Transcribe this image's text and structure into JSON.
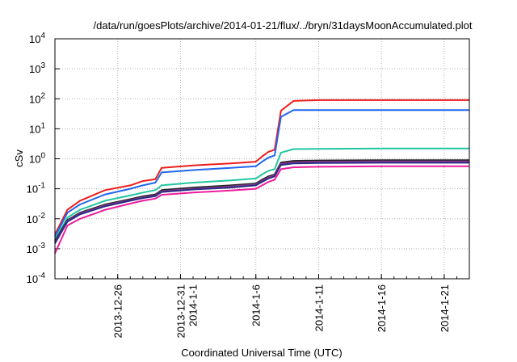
{
  "chart_data": {
    "type": "line",
    "title": "/data/run/goesPlots/archive/2014-01-21/flux/../bryn/31daysMoonAccumulated.plot",
    "xlabel": "Coordinated Universal Time (UTC)",
    "ylabel": "cSv",
    "yscale": "log",
    "ylim": [
      0.0001,
      10000
    ],
    "xlim": [
      "2013-12-21",
      "2014-01-23"
    ],
    "grid": true,
    "y_ticks": [
      {
        "value": 0.0001,
        "mantissa": "10",
        "exp": "-4"
      },
      {
        "value": 0.001,
        "mantissa": "10",
        "exp": "-3"
      },
      {
        "value": 0.01,
        "mantissa": "10",
        "exp": "-2"
      },
      {
        "value": 0.1,
        "mantissa": "10",
        "exp": "-1"
      },
      {
        "value": 1,
        "mantissa": "10",
        "exp": "0"
      },
      {
        "value": 10,
        "mantissa": "10",
        "exp": "1"
      },
      {
        "value": 100,
        "mantissa": "10",
        "exp": "2"
      },
      {
        "value": 1000,
        "mantissa": "10",
        "exp": "3"
      },
      {
        "value": 10000,
        "mantissa": "10",
        "exp": "4"
      }
    ],
    "x_ticks": [
      {
        "date": "2013-12-26",
        "lines": [
          "2013-12-26"
        ]
      },
      {
        "date": "2013-12-31",
        "lines": [
          "2013-12-31",
          "2014-1-1"
        ]
      },
      {
        "date": "2014-01-06",
        "lines": [
          "2014-1-6"
        ]
      },
      {
        "date": "2014-01-11",
        "lines": [
          "2014-1-11"
        ]
      },
      {
        "date": "2014-01-16",
        "lines": [
          "2014-1-16"
        ]
      },
      {
        "date": "2014-01-21",
        "lines": [
          "2014-1-21"
        ]
      }
    ],
    "x": [
      "2013-12-21",
      "2013-12-22",
      "2013-12-23",
      "2013-12-25",
      "2013-12-27",
      "2013-12-28",
      "2013-12-29",
      "2013-12-29T12",
      "2014-01-01",
      "2014-01-04",
      "2014-01-06",
      "2014-01-06T12",
      "2014-01-07",
      "2014-01-07T12",
      "2014-01-08",
      "2014-01-09",
      "2014-01-11",
      "2014-01-16",
      "2014-01-21",
      "2014-01-23"
    ],
    "series": [
      {
        "color": "#ee1c1c",
        "values": [
          0.003,
          0.02,
          0.04,
          0.09,
          0.13,
          0.18,
          0.21,
          0.5,
          0.6,
          0.7,
          0.8,
          1.2,
          1.7,
          2.0,
          40,
          85,
          90,
          90,
          90,
          90
        ]
      },
      {
        "color": "#2266ee",
        "values": [
          0.0025,
          0.016,
          0.03,
          0.065,
          0.1,
          0.13,
          0.16,
          0.35,
          0.42,
          0.5,
          0.56,
          0.8,
          1.1,
          1.3,
          25,
          42,
          42,
          42,
          42,
          42
        ]
      },
      {
        "color": "#22c6a0",
        "values": [
          0.002,
          0.011,
          0.02,
          0.04,
          0.06,
          0.075,
          0.09,
          0.13,
          0.16,
          0.19,
          0.22,
          0.3,
          0.4,
          0.45,
          1.6,
          2.1,
          2.15,
          2.2,
          2.2,
          2.2
        ]
      },
      {
        "color": "#222222",
        "values": [
          0.0018,
          0.009,
          0.016,
          0.03,
          0.045,
          0.056,
          0.065,
          0.09,
          0.11,
          0.13,
          0.15,
          0.2,
          0.26,
          0.3,
          0.75,
          0.85,
          0.88,
          0.9,
          0.9,
          0.9
        ]
      },
      {
        "color": "#8a3a8a",
        "values": [
          0.0016,
          0.0085,
          0.015,
          0.028,
          0.042,
          0.052,
          0.06,
          0.083,
          0.1,
          0.12,
          0.14,
          0.18,
          0.24,
          0.28,
          0.68,
          0.77,
          0.8,
          0.82,
          0.82,
          0.82
        ]
      },
      {
        "color": "#2a2a88",
        "values": [
          0.0015,
          0.008,
          0.014,
          0.026,
          0.04,
          0.049,
          0.057,
          0.078,
          0.095,
          0.11,
          0.13,
          0.17,
          0.22,
          0.26,
          0.62,
          0.7,
          0.72,
          0.74,
          0.74,
          0.74
        ]
      },
      {
        "color": "#ee1c9c",
        "values": [
          0.0007,
          0.006,
          0.01,
          0.02,
          0.032,
          0.04,
          0.047,
          0.063,
          0.075,
          0.088,
          0.1,
          0.13,
          0.17,
          0.2,
          0.45,
          0.52,
          0.54,
          0.56,
          0.56,
          0.56
        ]
      }
    ]
  }
}
